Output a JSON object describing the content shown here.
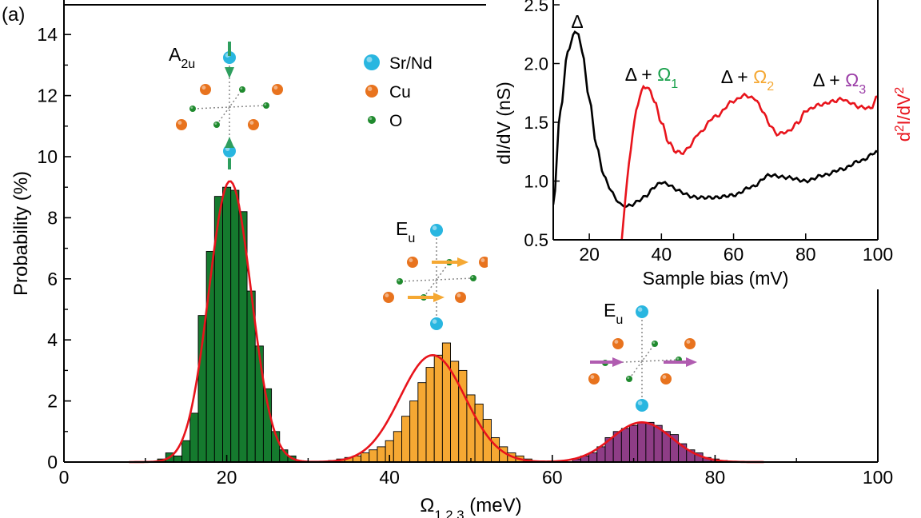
{
  "panel_label": "(a)",
  "legend": {
    "items": [
      {
        "label": "Sr/Nd",
        "color": "#29b6e0"
      },
      {
        "label": "Cu",
        "color": "#e8731e"
      },
      {
        "label": "O",
        "color": "#1f8a2e"
      }
    ]
  },
  "mode_labels": {
    "a2u": {
      "base": "A",
      "sub": "2u"
    },
    "eu1": {
      "base": "E",
      "sub": "u"
    },
    "eu2": {
      "base": "E",
      "sub": "u"
    }
  },
  "inset_peak_labels": {
    "delta": "Δ",
    "p1": {
      "prefix": "Δ + ",
      "omega": "Ω",
      "sub": "1"
    },
    "p2": {
      "prefix": "Δ + ",
      "omega": "Ω",
      "sub": "2"
    },
    "p3": {
      "prefix": "Δ + ",
      "omega": "Ω",
      "sub": "3"
    }
  },
  "colors": {
    "green_bars": "#157a2e",
    "orange_bars": "#f5a833",
    "purple_bars": "#8e3d86",
    "fit": "#e8141c",
    "omega1": "#17a04a",
    "omega2": "#f5a833",
    "omega3": "#9c3fa8",
    "didv": "#000000",
    "d2idv2": "#e8141c"
  },
  "chart_data": [
    {
      "type": "bar",
      "xlabel": {
        "base": "Ω",
        "sub": "1,2,3",
        "unit": " (meV)"
      },
      "ylabel": "Probability (%)",
      "xlim": [
        0,
        100
      ],
      "ylim": [
        0,
        15
      ],
      "xticks": [
        0,
        20,
        40,
        60,
        80,
        100
      ],
      "yticks": [
        0,
        2,
        4,
        6,
        8,
        10,
        12,
        14
      ],
      "bin_width": 1,
      "series": [
        {
          "color_key": "green_bars",
          "x": [
            12,
            13,
            14,
            15,
            16,
            17,
            18,
            19,
            20,
            21,
            22,
            23,
            24,
            25,
            26,
            27,
            28
          ],
          "values": [
            0.1,
            0.3,
            0.2,
            0.7,
            1.6,
            4.8,
            6.9,
            8.7,
            9.0,
            8.9,
            8.2,
            5.6,
            3.8,
            2.4,
            1.0,
            0.4,
            0.2
          ]
        },
        {
          "color_key": "orange_bars",
          "x": [
            33,
            34,
            35,
            36,
            37,
            38,
            39,
            40,
            41,
            42,
            43,
            44,
            45,
            46,
            47,
            48,
            49,
            50,
            51,
            52,
            53,
            54,
            55,
            56,
            57
          ],
          "values": [
            0.05,
            0.1,
            0.15,
            0.2,
            0.3,
            0.4,
            0.5,
            0.7,
            1.0,
            1.5,
            2.0,
            2.6,
            3.1,
            3.5,
            3.9,
            3.3,
            3.0,
            2.2,
            1.9,
            1.4,
            0.8,
            0.5,
            0.3,
            0.2,
            0.1
          ]
        },
        {
          "color_key": "purple_bars",
          "x": [
            63,
            64,
            65,
            66,
            67,
            68,
            69,
            70,
            71,
            72,
            73,
            74,
            75,
            76,
            77,
            78,
            79,
            80,
            81
          ],
          "values": [
            0.1,
            0.2,
            0.3,
            0.5,
            0.8,
            1.0,
            1.1,
            1.2,
            1.3,
            1.3,
            1.2,
            1.0,
            0.9,
            0.6,
            0.4,
            0.3,
            0.15,
            0.1,
            0.05
          ]
        }
      ],
      "fits": [
        {
          "center": 20.4,
          "sigma": 2.6,
          "amplitude": 9.2
        },
        {
          "center": 45.3,
          "sigma": 4.0,
          "amplitude": 3.5
        },
        {
          "center": 71.0,
          "sigma": 3.7,
          "amplitude": 1.3
        }
      ],
      "fit_range": [
        8,
        86
      ]
    },
    {
      "type": "line",
      "xlabel": "Sample bias (mV)",
      "ylabel": "dI/dV (nS)",
      "ylabel_right": {
        "base": "d",
        "sup1": "2",
        "mid": "I/dV",
        "sup2": "2"
      },
      "xlim": [
        10,
        100
      ],
      "ylim": [
        0.5,
        2.5
      ],
      "xticks": [
        20,
        40,
        60,
        80,
        100
      ],
      "yticks": [
        0.5,
        1.0,
        1.5,
        2.0,
        2.5
      ],
      "series": [
        {
          "color_key": "didv",
          "x": [
            10,
            12,
            14,
            16,
            17,
            18,
            20,
            22,
            24,
            26,
            28,
            30,
            32,
            34,
            36,
            38,
            40,
            42,
            44,
            46,
            48,
            50,
            55,
            60,
            65,
            70,
            75,
            80,
            85,
            90,
            95,
            100
          ],
          "y": [
            0.8,
            1.6,
            2.1,
            2.27,
            2.25,
            2.1,
            1.7,
            1.3,
            1.05,
            0.92,
            0.82,
            0.78,
            0.8,
            0.84,
            0.88,
            0.95,
            0.99,
            0.97,
            0.93,
            0.9,
            0.87,
            0.86,
            0.86,
            0.88,
            0.95,
            1.05,
            1.03,
            1.0,
            1.05,
            1.1,
            1.17,
            1.25
          ]
        },
        {
          "color_key": "d2idv2",
          "x": [
            29,
            30,
            31,
            32,
            33,
            34,
            35,
            36,
            37,
            38,
            40,
            42,
            44,
            46,
            48,
            50,
            55,
            60,
            63,
            66,
            68,
            70,
            72,
            75,
            78,
            80,
            84,
            88,
            90,
            92,
            95,
            98,
            100
          ],
          "y": [
            0.5,
            0.85,
            1.15,
            1.4,
            1.6,
            1.72,
            1.8,
            1.8,
            1.76,
            1.68,
            1.5,
            1.33,
            1.25,
            1.24,
            1.3,
            1.4,
            1.55,
            1.68,
            1.73,
            1.7,
            1.6,
            1.48,
            1.4,
            1.42,
            1.5,
            1.6,
            1.65,
            1.68,
            1.7,
            1.67,
            1.63,
            1.62,
            1.72
          ]
        }
      ]
    }
  ]
}
